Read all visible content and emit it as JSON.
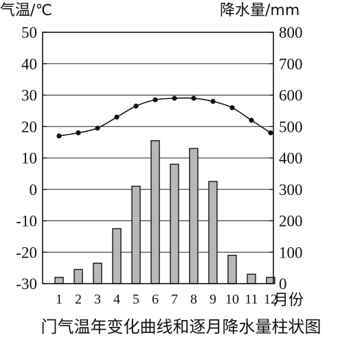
{
  "chart_data": {
    "type": "bar+line",
    "caption": "门气温年变化曲线和逐月降水量柱状图",
    "left_axis": {
      "label": "气温/℃",
      "ticks": [
        "50",
        "40",
        "30",
        "20",
        "10",
        "0",
        "-10",
        "-20",
        "-30"
      ],
      "ylim": [
        -30,
        50
      ]
    },
    "right_axis": {
      "label": "降水量/mm",
      "ticks": [
        "800",
        "700",
        "600",
        "500",
        "400",
        "300",
        "200",
        "100",
        "0"
      ],
      "ylim": [
        0,
        800
      ]
    },
    "x_axis": {
      "unit_label": "月份",
      "categories": [
        "1",
        "2",
        "3",
        "4",
        "5",
        "6",
        "7",
        "8",
        "9",
        "10",
        "11",
        "12"
      ]
    },
    "temperature_c": [
      17,
      18,
      19.5,
      23,
      26.5,
      28.5,
      29,
      29,
      28,
      26,
      22,
      18
    ],
    "precipitation_mm": [
      20,
      45,
      65,
      175,
      310,
      455,
      380,
      430,
      325,
      90,
      30,
      20
    ],
    "grid": true
  }
}
